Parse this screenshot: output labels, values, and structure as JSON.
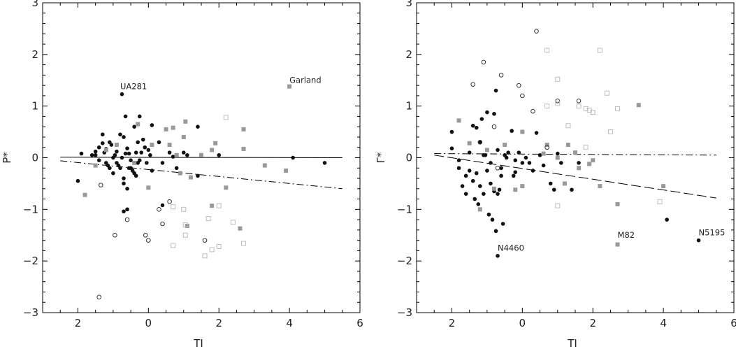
{
  "colors": {
    "filled": "#111111",
    "gray": "#999999",
    "open_black": "#333333",
    "open_gray": "#bdbdbd"
  },
  "chart_data": [
    {
      "type": "scatter",
      "title": "",
      "xlabel": "TI",
      "ylabel": "P*",
      "xlim": [
        -3,
        6
      ],
      "ylim": [
        -3,
        3
      ],
      "x_reversed_tick_labels": true,
      "xticks": [
        -2,
        0,
        2,
        4,
        6
      ],
      "xtick_labels": [
        "2",
        "0",
        "2",
        "4",
        "6"
      ],
      "yticks": [
        -3,
        -2,
        -1,
        0,
        1,
        2,
        3
      ],
      "ytick_labels": [
        "−3",
        "−2",
        "−1",
        "0",
        "1",
        "2",
        "3"
      ],
      "grid": false,
      "series": [
        {
          "marker": "filled-circle",
          "color": "filled",
          "points": [
            [
              -1.9,
              0.08
            ],
            [
              -2.0,
              -0.45
            ],
            [
              -1.6,
              0.05
            ],
            [
              -1.5,
              0.12
            ],
            [
              -1.4,
              0.2
            ],
            [
              -1.3,
              0.28
            ],
            [
              -1.2,
              0.17
            ],
            [
              -1.1,
              0.3
            ],
            [
              -1.0,
              0.0
            ],
            [
              -0.9,
              0.12
            ],
            [
              -0.8,
              0.45
            ],
            [
              -0.7,
              0.4
            ],
            [
              -0.65,
              0.8
            ],
            [
              -0.6,
              0.18
            ],
            [
              -0.55,
              0.08
            ],
            [
              -0.5,
              -0.05
            ],
            [
              -0.4,
              0.6
            ],
            [
              -0.3,
              0.3
            ],
            [
              -0.2,
              0.1
            ],
            [
              -0.1,
              0.2
            ],
            [
              0.0,
              0.15
            ],
            [
              0.1,
              0.63
            ],
            [
              -1.3,
              0.45
            ],
            [
              -1.2,
              -0.1
            ],
            [
              -1.1,
              -0.2
            ],
            [
              -1.0,
              -0.3
            ],
            [
              -0.9,
              -0.1
            ],
            [
              -0.8,
              -0.2
            ],
            [
              -0.7,
              -0.4
            ],
            [
              -0.6,
              -0.6
            ],
            [
              -0.5,
              -0.2
            ],
            [
              -0.4,
              -0.3
            ],
            [
              -0.3,
              -0.1
            ],
            [
              -1.4,
              -0.05
            ],
            [
              -1.5,
              0.05
            ],
            [
              -1.25,
              0.1
            ],
            [
              -1.05,
              0.25
            ],
            [
              -0.95,
              0.05
            ],
            [
              -0.85,
              -0.15
            ],
            [
              -0.75,
              0.0
            ],
            [
              -0.65,
              0.08
            ],
            [
              -0.55,
              -0.2
            ],
            [
              -0.45,
              -0.25
            ],
            [
              -0.35,
              0.1
            ],
            [
              -0.25,
              -0.05
            ],
            [
              -0.15,
              0.35
            ],
            [
              -0.05,
              -0.1
            ],
            [
              0.05,
              0.05
            ],
            [
              0.1,
              -0.25
            ],
            [
              0.3,
              0.3
            ],
            [
              0.4,
              -0.1
            ],
            [
              0.6,
              0.1
            ],
            [
              0.7,
              0.02
            ],
            [
              0.8,
              -0.2
            ],
            [
              1.0,
              0.1
            ],
            [
              1.1,
              0.05
            ],
            [
              1.4,
              0.6
            ],
            [
              1.4,
              -0.35
            ],
            [
              2.0,
              0.05
            ],
            [
              -0.75,
              1.23
            ],
            [
              -1.15,
              -0.15
            ],
            [
              -0.7,
              -0.5
            ],
            [
              0.4,
              -0.92
            ],
            [
              -0.7,
              -1.04
            ],
            [
              -0.6,
              -1.0
            ],
            [
              4.1,
              0.0
            ],
            [
              5.0,
              -0.1
            ],
            [
              -0.25,
              0.8
            ],
            [
              -0.35,
              -0.35
            ]
          ]
        },
        {
          "marker": "filled-square",
          "color": "gray",
          "points": [
            [
              -1.8,
              -0.72
            ],
            [
              -1.5,
              -0.15
            ],
            [
              -1.2,
              0.15
            ],
            [
              -0.9,
              0.25
            ],
            [
              -0.4,
              -0.1
            ],
            [
              -0.3,
              0.65
            ],
            [
              0.0,
              -0.58
            ],
            [
              0.1,
              0.25
            ],
            [
              0.5,
              0.55
            ],
            [
              0.6,
              0.25
            ],
            [
              0.7,
              0.58
            ],
            [
              0.8,
              0.05
            ],
            [
              0.9,
              -0.3
            ],
            [
              1.0,
              0.4
            ],
            [
              1.05,
              0.7
            ],
            [
              1.2,
              -0.38
            ],
            [
              1.1,
              -1.32
            ],
            [
              1.5,
              0.05
            ],
            [
              1.8,
              0.15
            ],
            [
              1.8,
              -0.93
            ],
            [
              1.9,
              0.28
            ],
            [
              2.2,
              -0.58
            ],
            [
              2.6,
              -1.37
            ],
            [
              2.7,
              0.55
            ],
            [
              2.7,
              0.17
            ],
            [
              3.3,
              -0.15
            ],
            [
              3.9,
              -0.25
            ],
            [
              4.0,
              1.38
            ]
          ]
        },
        {
          "marker": "open-circle",
          "color": "open_black",
          "points": [
            [
              -1.35,
              -0.53
            ],
            [
              -0.6,
              -1.2
            ],
            [
              -0.95,
              -1.5
            ],
            [
              -1.4,
              -2.7
            ],
            [
              0.3,
              -1.0
            ],
            [
              0.4,
              -1.28
            ],
            [
              0.6,
              -0.85
            ],
            [
              -0.08,
              -1.5
            ],
            [
              0.0,
              -1.6
            ],
            [
              1.6,
              -1.6
            ]
          ]
        },
        {
          "marker": "open-square",
          "color": "open_gray",
          "points": [
            [
              0.7,
              -0.95
            ],
            [
              0.7,
              -1.7
            ],
            [
              1.0,
              -1.0
            ],
            [
              1.05,
              -1.5
            ],
            [
              1.05,
              -1.3
            ],
            [
              1.6,
              -1.9
            ],
            [
              1.7,
              -1.18
            ],
            [
              1.8,
              -1.78
            ],
            [
              2.0,
              -1.72
            ],
            [
              2.0,
              -0.93
            ],
            [
              2.2,
              0.78
            ],
            [
              2.4,
              -1.25
            ],
            [
              2.7,
              -1.66
            ]
          ]
        }
      ],
      "lines": [
        {
          "style": "solid",
          "x": [
            -2.5,
            5.5
          ],
          "y": [
            0.01,
            0.0
          ]
        },
        {
          "style": "dash-dot",
          "x": [
            -2.5,
            5.5
          ],
          "y": [
            -0.06,
            -0.6
          ]
        }
      ],
      "annotations": [
        {
          "text": "UA281",
          "x": -0.8,
          "y": 1.33
        },
        {
          "text": "Garland",
          "x": 4.0,
          "y": 1.45
        }
      ]
    },
    {
      "type": "scatter",
      "title": "",
      "xlabel": "TI",
      "ylabel": "Γ*",
      "xlim": [
        -3,
        6
      ],
      "ylim": [
        -3,
        3
      ],
      "x_reversed_tick_labels": true,
      "xticks": [
        -2,
        0,
        2,
        4,
        6
      ],
      "xtick_labels": [
        "2",
        "0",
        "2",
        "4",
        "6"
      ],
      "yticks": [
        -3,
        -2,
        -1,
        0,
        1,
        2,
        3
      ],
      "ytick_labels": [
        "−3",
        "−2",
        "−1",
        "0",
        "1",
        "2",
        "3"
      ],
      "grid": false,
      "series": [
        {
          "marker": "filled-circle",
          "color": "filled",
          "points": [
            [
              -2.0,
              0.5
            ],
            [
              -2.0,
              0.18
            ],
            [
              -1.8,
              -0.05
            ],
            [
              -1.6,
              -0.35
            ],
            [
              -1.5,
              0.1
            ],
            [
              -1.4,
              0.62
            ],
            [
              -1.3,
              0.58
            ],
            [
              -1.2,
              0.3
            ],
            [
              -1.1,
              0.05
            ],
            [
              -1.0,
              0.88
            ],
            [
              -0.9,
              -0.1
            ],
            [
              -0.8,
              0.85
            ],
            [
              -0.75,
              1.3
            ],
            [
              -0.7,
              0.15
            ],
            [
              -0.6,
              -0.2
            ],
            [
              -0.5,
              0.05
            ],
            [
              -0.4,
              0.1
            ],
            [
              -0.3,
              0.52
            ],
            [
              -0.2,
              -0.05
            ],
            [
              -0.1,
              0.1
            ],
            [
              0.0,
              -0.1
            ],
            [
              0.1,
              0.0
            ],
            [
              0.3,
              -0.25
            ],
            [
              0.4,
              0.48
            ],
            [
              0.5,
              0.05
            ],
            [
              0.6,
              -0.15
            ],
            [
              0.8,
              -0.5
            ],
            [
              0.9,
              -0.62
            ],
            [
              1.0,
              0.08
            ],
            [
              1.1,
              -0.1
            ],
            [
              1.4,
              -0.62
            ],
            [
              1.6,
              -0.1
            ],
            [
              -1.8,
              -0.2
            ],
            [
              -1.7,
              -0.55
            ],
            [
              -1.6,
              -0.7
            ],
            [
              -1.5,
              -0.25
            ],
            [
              -1.4,
              -0.45
            ],
            [
              -1.3,
              -0.3
            ],
            [
              -1.2,
              -0.55
            ],
            [
              -1.1,
              -0.7
            ],
            [
              -1.0,
              -0.25
            ],
            [
              -0.9,
              -0.5
            ],
            [
              -0.8,
              -0.65
            ],
            [
              -0.7,
              -0.7
            ],
            [
              -0.65,
              -0.62
            ],
            [
              -0.6,
              -0.35
            ],
            [
              -1.35,
              -0.8
            ],
            [
              -1.25,
              -0.9
            ],
            [
              -0.95,
              -1.1
            ],
            [
              -0.85,
              -1.2
            ],
            [
              -0.75,
              -1.42
            ],
            [
              -0.55,
              -1.28
            ],
            [
              -0.7,
              -1.9
            ],
            [
              -1.15,
              0.75
            ],
            [
              -0.45,
              0.0
            ],
            [
              -0.25,
              -0.35
            ],
            [
              4.1,
              -1.2
            ],
            [
              5.0,
              -1.6
            ],
            [
              -0.2,
              -0.28
            ],
            [
              0.2,
              -0.1
            ],
            [
              -1.05,
              0.05
            ]
          ]
        },
        {
          "marker": "filled-square",
          "color": "gray",
          "points": [
            [
              -1.8,
              0.72
            ],
            [
              -1.5,
              0.28
            ],
            [
              -1.2,
              -1.0
            ],
            [
              -1.0,
              0.15
            ],
            [
              -0.8,
              -0.6
            ],
            [
              -0.5,
              0.25
            ],
            [
              -0.2,
              -0.62
            ],
            [
              0.0,
              0.5
            ],
            [
              0.0,
              -0.55
            ],
            [
              0.6,
              0.08
            ],
            [
              0.7,
              0.25
            ],
            [
              1.0,
              0.0
            ],
            [
              1.2,
              -0.5
            ],
            [
              1.3,
              0.25
            ],
            [
              1.5,
              0.1
            ],
            [
              1.6,
              -0.2
            ],
            [
              1.9,
              -0.12
            ],
            [
              2.0,
              -0.05
            ],
            [
              2.2,
              -0.55
            ],
            [
              2.7,
              -0.9
            ],
            [
              2.7,
              -1.68
            ],
            [
              3.3,
              1.02
            ],
            [
              4.0,
              -0.55
            ]
          ]
        },
        {
          "marker": "open-circle",
          "color": "open_black",
          "points": [
            [
              -1.4,
              1.42
            ],
            [
              -1.2,
              0.3
            ],
            [
              -1.1,
              1.85
            ],
            [
              -0.8,
              0.6
            ],
            [
              -0.6,
              1.6
            ],
            [
              -0.7,
              -0.2
            ],
            [
              -0.1,
              1.4
            ],
            [
              0.0,
              1.2
            ],
            [
              0.4,
              2.45
            ],
            [
              0.3,
              0.9
            ],
            [
              0.7,
              0.2
            ],
            [
              1.0,
              1.1
            ],
            [
              1.6,
              1.1
            ]
          ]
        },
        {
          "marker": "open-square",
          "color": "open_gray",
          "points": [
            [
              0.7,
              2.08
            ],
            [
              0.7,
              1.0
            ],
            [
              1.0,
              1.52
            ],
            [
              1.0,
              1.05
            ],
            [
              1.3,
              0.62
            ],
            [
              1.6,
              1.0
            ],
            [
              1.8,
              0.95
            ],
            [
              1.8,
              0.2
            ],
            [
              1.9,
              0.92
            ],
            [
              2.0,
              0.88
            ],
            [
              2.2,
              2.08
            ],
            [
              2.4,
              1.25
            ],
            [
              2.5,
              0.5
            ],
            [
              2.7,
              0.95
            ],
            [
              1.0,
              -0.93
            ],
            [
              3.9,
              -0.85
            ]
          ]
        }
      ],
      "lines": [
        {
          "style": "dash-dot",
          "x": [
            -2.5,
            5.5
          ],
          "y": [
            0.08,
            0.05
          ]
        },
        {
          "style": "long-dash",
          "x": [
            -2.5,
            5.5
          ],
          "y": [
            0.05,
            -0.78
          ]
        }
      ],
      "annotations": [
        {
          "text": "N4460",
          "x": -0.7,
          "y": -1.8
        },
        {
          "text": "M82",
          "x": 2.7,
          "y": -1.55
        },
        {
          "text": "N5195",
          "x": 5.0,
          "y": -1.5
        }
      ]
    }
  ]
}
